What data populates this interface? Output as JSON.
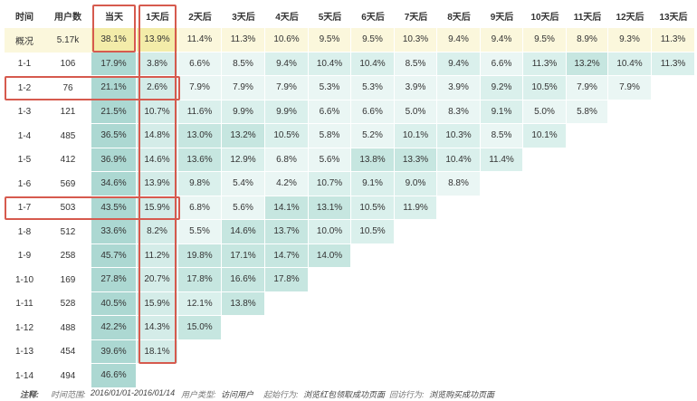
{
  "headers": [
    "时间",
    "用户数",
    "当天",
    "1天后",
    "2天后",
    "3天后",
    "4天后",
    "5天后",
    "6天后",
    "7天后",
    "8天后",
    "9天后",
    "10天后",
    "11天后",
    "12天后",
    "13天后"
  ],
  "rows": [
    {
      "date": "概况",
      "users": "5.17k",
      "values": [
        "38.1%",
        "13.9%",
        "11.4%",
        "11.3%",
        "10.6%",
        "9.5%",
        "9.5%",
        "10.3%",
        "9.4%",
        "9.4%",
        "9.5%",
        "8.9%",
        "9.3%",
        "11.3%"
      ]
    },
    {
      "date": "1-1",
      "users": "106",
      "values": [
        "17.9%",
        "3.8%",
        "6.6%",
        "8.5%",
        "9.4%",
        "10.4%",
        "10.4%",
        "8.5%",
        "9.4%",
        "6.6%",
        "11.3%",
        "13.2%",
        "10.4%",
        "11.3%"
      ]
    },
    {
      "date": "1-2",
      "users": "76",
      "values": [
        "21.1%",
        "2.6%",
        "7.9%",
        "7.9%",
        "7.9%",
        "5.3%",
        "5.3%",
        "3.9%",
        "3.9%",
        "9.2%",
        "10.5%",
        "7.9%",
        "7.9%"
      ]
    },
    {
      "date": "1-3",
      "users": "121",
      "values": [
        "21.5%",
        "10.7%",
        "11.6%",
        "9.9%",
        "9.9%",
        "6.6%",
        "6.6%",
        "5.0%",
        "8.3%",
        "9.1%",
        "5.0%",
        "5.8%"
      ]
    },
    {
      "date": "1-4",
      "users": "485",
      "values": [
        "36.5%",
        "14.8%",
        "13.0%",
        "13.2%",
        "10.5%",
        "5.8%",
        "5.2%",
        "10.1%",
        "10.3%",
        "8.5%",
        "10.1%"
      ]
    },
    {
      "date": "1-5",
      "users": "412",
      "values": [
        "36.9%",
        "14.6%",
        "13.6%",
        "12.9%",
        "6.8%",
        "5.6%",
        "13.8%",
        "13.3%",
        "10.4%",
        "11.4%"
      ]
    },
    {
      "date": "1-6",
      "users": "569",
      "values": [
        "34.6%",
        "13.9%",
        "9.8%",
        "5.4%",
        "4.2%",
        "10.7%",
        "9.1%",
        "9.0%",
        "8.8%"
      ]
    },
    {
      "date": "1-7",
      "users": "503",
      "values": [
        "43.5%",
        "15.9%",
        "6.8%",
        "5.6%",
        "14.1%",
        "13.1%",
        "10.5%",
        "11.9%"
      ]
    },
    {
      "date": "1-8",
      "users": "512",
      "values": [
        "33.6%",
        "8.2%",
        "5.5%",
        "14.6%",
        "13.7%",
        "10.0%",
        "10.5%"
      ]
    },
    {
      "date": "1-9",
      "users": "258",
      "values": [
        "45.7%",
        "11.2%",
        "19.8%",
        "17.1%",
        "14.7%",
        "14.0%"
      ]
    },
    {
      "date": "1-10",
      "users": "169",
      "values": [
        "27.8%",
        "20.7%",
        "17.8%",
        "16.6%",
        "17.8%"
      ]
    },
    {
      "date": "1-11",
      "users": "528",
      "values": [
        "40.5%",
        "15.9%",
        "12.1%",
        "13.8%"
      ]
    },
    {
      "date": "1-12",
      "users": "488",
      "values": [
        "42.2%",
        "14.3%",
        "15.0%"
      ]
    },
    {
      "date": "1-13",
      "users": "454",
      "values": [
        "39.6%",
        "18.1%"
      ]
    },
    {
      "date": "1-14",
      "users": "494",
      "values": [
        "46.6%"
      ]
    }
  ],
  "colors": {
    "summary_bg": "#fbf7dc",
    "summary_highlight": "#f3eca9",
    "day0_bg": "#acd8d2",
    "day1_bg": "#d4ece8",
    "cell_light": "#eaf6f4",
    "cell_medium": "#daf0ec",
    "cell_dark": "#c6e6e0",
    "highlight_border": "#d65a4e"
  },
  "footer": {
    "note_label": "注释:",
    "range_label": "时间范围:",
    "range_value": "2016/01/01-2016/01/14",
    "user_type_label": "用户类型:",
    "user_type_value": "访问用户",
    "start_action_label": "起始行为:",
    "start_action_value": "浏览红包领取成功页面",
    "return_action_label": "回访行为:",
    "return_action_value": "浏览购买成功页面"
  }
}
